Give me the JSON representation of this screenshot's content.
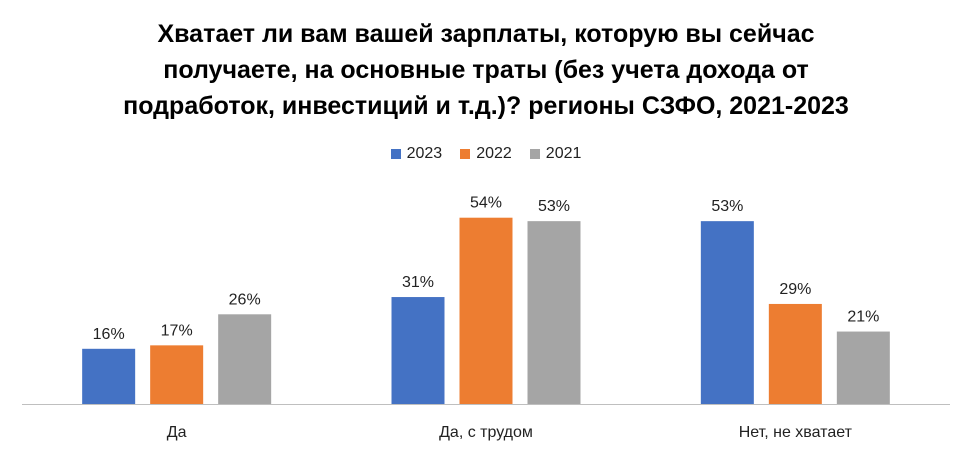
{
  "title_lines": [
    "Хватает ли вам вашей зарплаты, которую вы сейчас",
    "получаете, на основные траты (без учета дохода от",
    "подработок, инвестиций и т.д.)? регионы СЗФО, 2021-2023"
  ],
  "colors": {
    "2023": "#4472C4",
    "2022": "#ED7D31",
    "2021": "#A5A5A5",
    "axis": "#BFBFBF"
  },
  "chart_data": {
    "type": "bar",
    "title": "Хватает ли вам вашей зарплаты, которую вы сейчас получаете, на основные траты (без учета дохода от подработок, инвестиций и т.д.)? регионы СЗФО, 2021-2023",
    "categories": [
      "Да",
      "Да, с трудом",
      "Нет, не хватает"
    ],
    "series": [
      {
        "name": "2023",
        "values": [
          16,
          31,
          53
        ],
        "labels": [
          "16%",
          "31%",
          "53%"
        ]
      },
      {
        "name": "2022",
        "values": [
          17,
          54,
          29
        ],
        "labels": [
          "17%",
          "54%",
          "29%"
        ]
      },
      {
        "name": "2021",
        "values": [
          26,
          53,
          21
        ],
        "labels": [
          "26%",
          "53%",
          "21%"
        ]
      }
    ],
    "unit": "%",
    "ylim": [
      0,
      54
    ],
    "grid": false,
    "legend_position": "top"
  }
}
